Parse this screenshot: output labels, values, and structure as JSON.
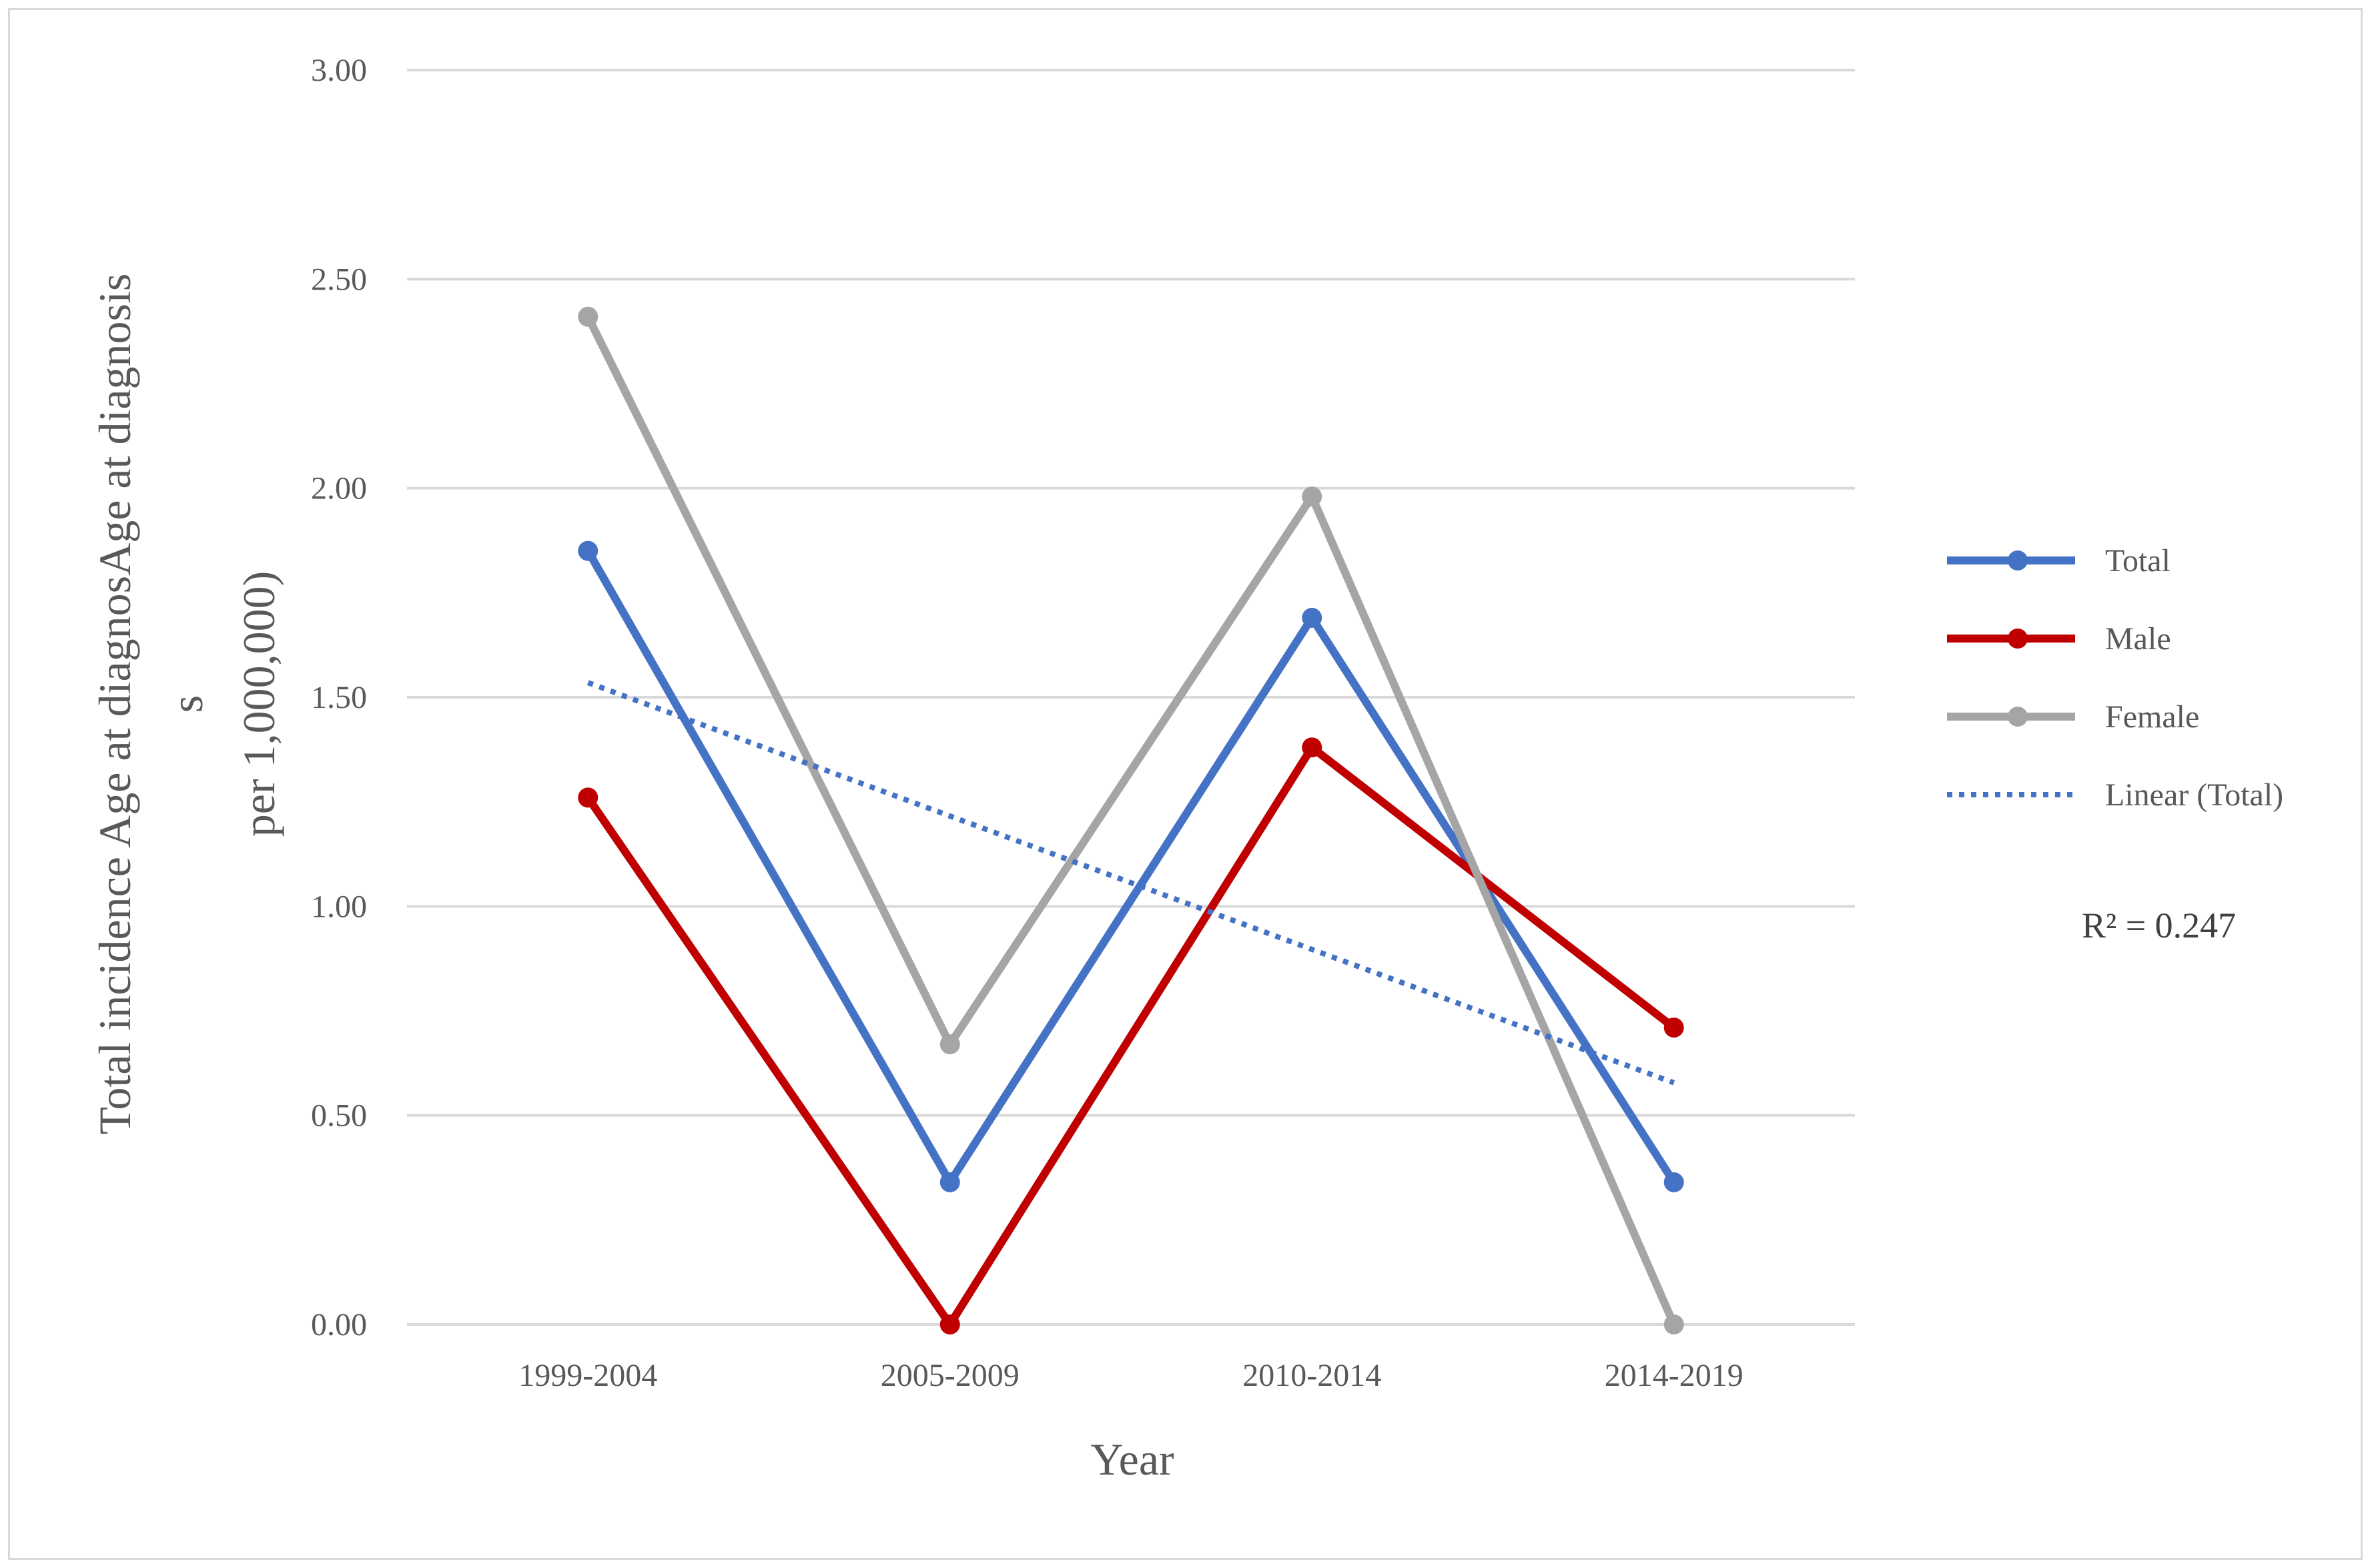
{
  "chart_data": {
    "type": "line",
    "categories": [
      "1999-2004",
      "2005-2009",
      "2010-2014",
      "2014-2019"
    ],
    "series": [
      {
        "name": "Total",
        "values": [
          1.85,
          0.34,
          1.69,
          0.34
        ],
        "color": "#4472C4"
      },
      {
        "name": "Male",
        "values": [
          1.26,
          0.0,
          1.38,
          0.71
        ],
        "color": "#C00000"
      },
      {
        "name": "Female",
        "values": [
          2.41,
          0.67,
          1.98,
          0.0
        ],
        "color": "#A5A5A5"
      }
    ],
    "trendline": {
      "name": "Linear (Total)",
      "values": [
        1.535,
        1.216,
        0.897,
        0.578
      ],
      "color": "#4472C4",
      "style": "dotted"
    },
    "r_squared_label": "R² = 0.247",
    "xlabel": "Year",
    "ylabel_lines": [
      "Total incidence Age at diagnosAge at diagnosis",
      "s",
      "per 1,000,000)"
    ],
    "yticks": [
      "0.00",
      "0.50",
      "1.00",
      "1.50",
      "2.00",
      "2.50",
      "3.00"
    ],
    "ylim": [
      0,
      3
    ],
    "grid": true,
    "legend_position": "right",
    "grid_color": "#d9d9d9"
  }
}
